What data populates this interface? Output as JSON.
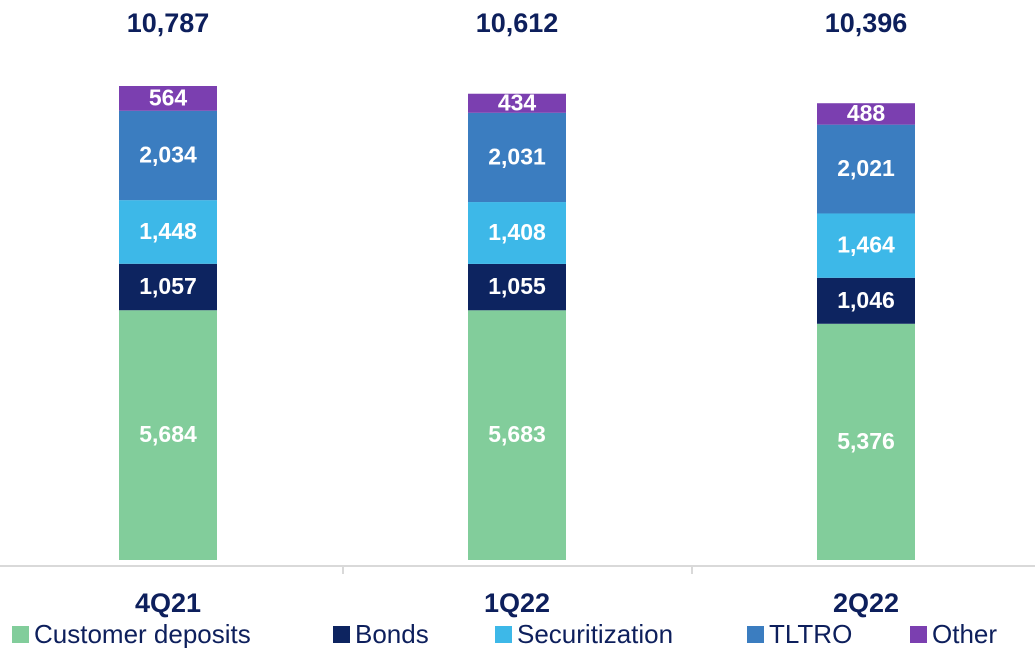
{
  "chart_data": {
    "type": "stacked_bar",
    "categories": [
      "4Q21",
      "1Q22",
      "2Q22"
    ],
    "series": [
      {
        "name": "Customer deposits",
        "color": "#82cd9b",
        "values": [
          5684,
          5683,
          5376
        ],
        "value_labels": [
          "5,684",
          "5,683",
          "5,376"
        ]
      },
      {
        "name": "Bonds",
        "color": "#0d2460",
        "values": [
          1057,
          1055,
          1046
        ],
        "value_labels": [
          "1,057",
          "1,055",
          "1,046"
        ]
      },
      {
        "name": "Securitization",
        "color": "#3db8e8",
        "values": [
          1448,
          1408,
          1464
        ],
        "value_labels": [
          "1,448",
          "1,408",
          "1,464"
        ]
      },
      {
        "name": "TLTRO",
        "color": "#3b7dc0",
        "values": [
          2034,
          2031,
          2021
        ],
        "value_labels": [
          "2,034",
          "2,031",
          "2,021"
        ]
      },
      {
        "name": "Other",
        "color": "#7b3fb0",
        "values": [
          564,
          434,
          488
        ],
        "value_labels": [
          "564",
          "434",
          "488"
        ]
      }
    ],
    "totals": {
      "values": [
        10787,
        10612,
        10396
      ],
      "value_labels": [
        "10,787",
        "10,612",
        "10,396"
      ]
    }
  }
}
